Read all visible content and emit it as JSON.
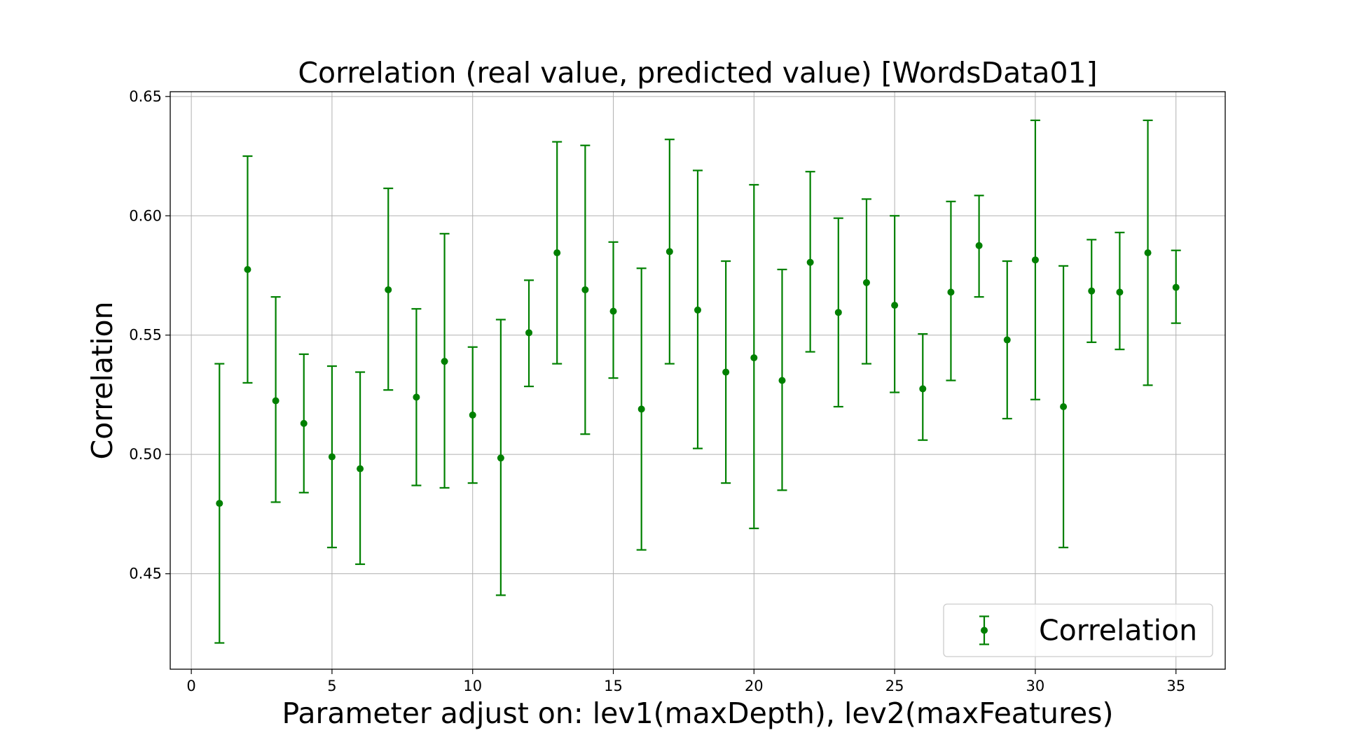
{
  "chart_data": {
    "type": "scatter",
    "title": "Correlation (real value, predicted value)  [WordsData01]",
    "xlabel": "Parameter adjust on: lev1(maxDepth), lev2(maxFeatures)",
    "ylabel": "Correlation",
    "xlim": [
      -0.75,
      36.75
    ],
    "ylim": [
      0.41,
      0.652
    ],
    "xticks": [
      0,
      5,
      10,
      15,
      20,
      25,
      30,
      35
    ],
    "xtick_labels": [
      "0",
      "5",
      "10",
      "15",
      "20",
      "25",
      "30",
      "35"
    ],
    "yticks": [
      0.45,
      0.5,
      0.55,
      0.6,
      0.65
    ],
    "ytick_labels": [
      "0.45",
      "0.50",
      "0.55",
      "0.60",
      "0.65"
    ],
    "grid": true,
    "legend_position": "lower-right",
    "color": "#008000",
    "series": [
      {
        "name": "Correlation",
        "marker": "o",
        "errorbars": true,
        "x": [
          1,
          2,
          3,
          4,
          5,
          6,
          7,
          8,
          9,
          10,
          11,
          12,
          13,
          14,
          15,
          16,
          17,
          18,
          19,
          20,
          21,
          22,
          23,
          24,
          25,
          26,
          27,
          28,
          29,
          30,
          31,
          32,
          33,
          34,
          35
        ],
        "y": [
          0.4795,
          0.5775,
          0.5225,
          0.513,
          0.499,
          0.494,
          0.569,
          0.524,
          0.539,
          0.5165,
          0.4985,
          0.551,
          0.5845,
          0.569,
          0.56,
          0.519,
          0.585,
          0.5605,
          0.5345,
          0.5405,
          0.531,
          0.5805,
          0.5595,
          0.572,
          0.5625,
          0.5275,
          0.568,
          0.5875,
          0.548,
          0.5815,
          0.52,
          0.5685,
          0.568,
          0.5845,
          0.57
        ],
        "yerr_low": [
          0.421,
          0.53,
          0.48,
          0.484,
          0.461,
          0.454,
          0.527,
          0.487,
          0.486,
          0.488,
          0.441,
          0.5285,
          0.538,
          0.5085,
          0.532,
          0.46,
          0.538,
          0.5025,
          0.488,
          0.469,
          0.485,
          0.543,
          0.52,
          0.538,
          0.526,
          0.506,
          0.531,
          0.566,
          0.515,
          0.523,
          0.461,
          0.547,
          0.544,
          0.529,
          0.555
        ],
        "yerr_high": [
          0.538,
          0.625,
          0.566,
          0.542,
          0.537,
          0.5345,
          0.6115,
          0.561,
          0.5925,
          0.545,
          0.5565,
          0.573,
          0.631,
          0.6295,
          0.589,
          0.578,
          0.632,
          0.619,
          0.581,
          0.613,
          0.5775,
          0.6185,
          0.599,
          0.607,
          0.6,
          0.5505,
          0.606,
          0.6085,
          0.581,
          0.64,
          0.579,
          0.59,
          0.593,
          0.64,
          0.5855
        ]
      }
    ]
  },
  "legend": {
    "label": "Correlation"
  }
}
